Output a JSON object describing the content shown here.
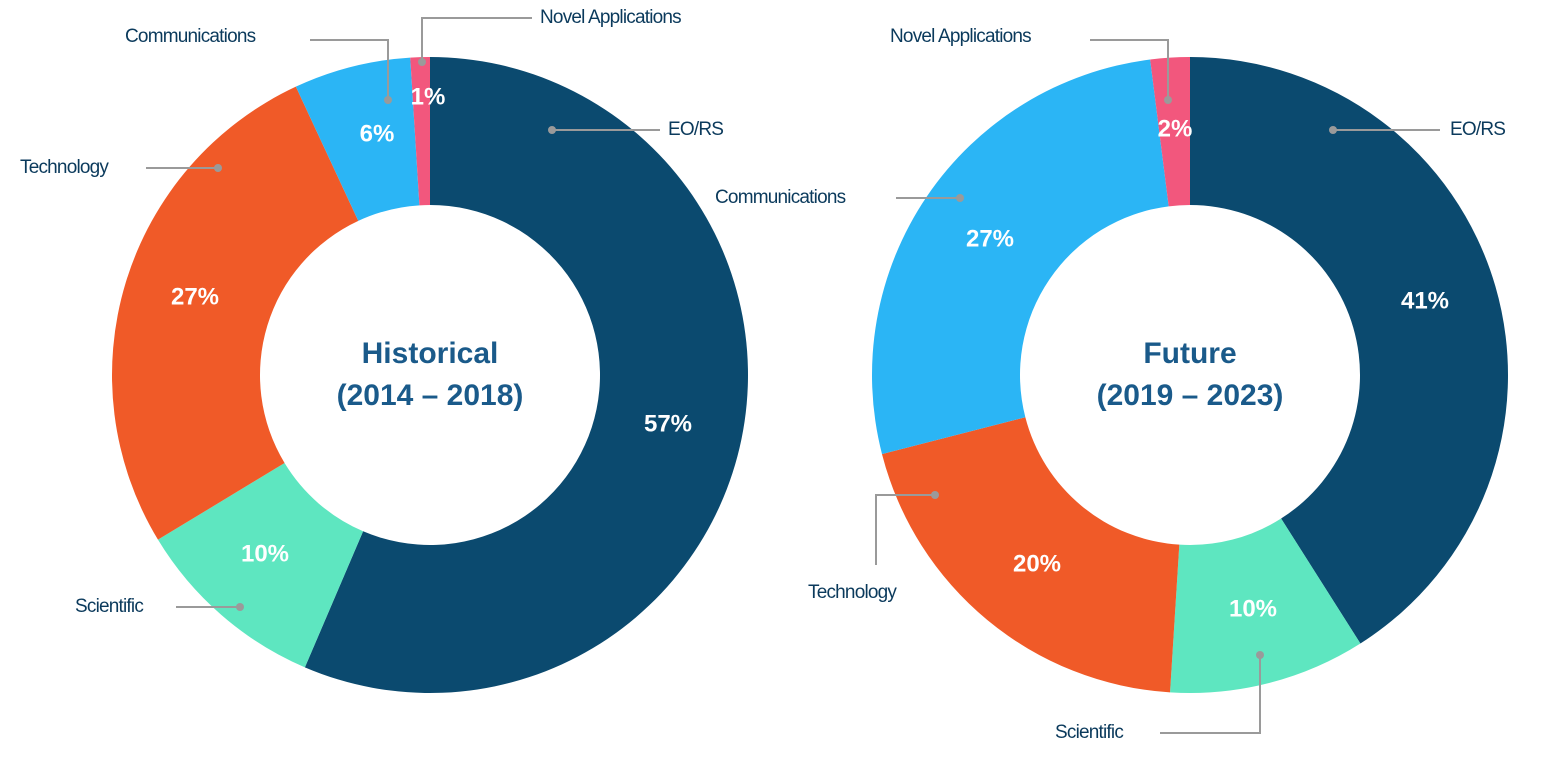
{
  "chart_data": [
    {
      "type": "donut",
      "title": "Historical",
      "subtitle": "(2014 – 2018)",
      "categories": [
        "EO/RS",
        "Scientific",
        "Technology",
        "Communications",
        "Novel Applications"
      ],
      "values": [
        57,
        10,
        27,
        6,
        1
      ],
      "value_labels": [
        "57%",
        "10%",
        "27%",
        "6%",
        "1%"
      ],
      "colors": [
        "#0b4a6f",
        "#5ee6c0",
        "#f05a28",
        "#2bb5f5",
        "#f2577d"
      ]
    },
    {
      "type": "donut",
      "title": "Future",
      "subtitle": "(2019 – 2023)",
      "categories": [
        "EO/RS",
        "Scientific",
        "Technology",
        "Communications",
        "Novel Applications"
      ],
      "values": [
        41,
        10,
        20,
        27,
        2
      ],
      "value_labels": [
        "41%",
        "10%",
        "20%",
        "27%",
        "2%"
      ],
      "colors": [
        "#0b4a6f",
        "#5ee6c0",
        "#f05a28",
        "#2bb5f5",
        "#f2577d"
      ]
    }
  ]
}
